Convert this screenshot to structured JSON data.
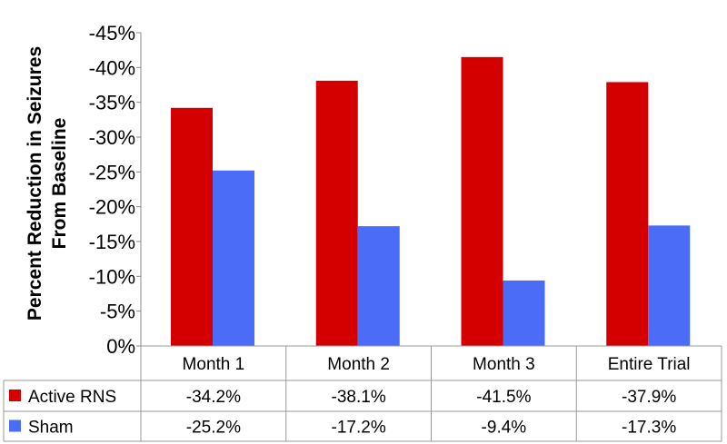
{
  "chart_data": {
    "type": "bar",
    "ylabel": "Percent Reduction in Seizures From Baseline",
    "ylabel_lines": [
      "Percent Reduction in Seizures",
      "From Baseline"
    ],
    "categories": [
      "Month 1",
      "Month 2",
      "Month 3",
      "Entire Trial"
    ],
    "ylim": [
      0,
      -45
    ],
    "yticks": [
      "0%",
      "-5%",
      "-10%",
      "-15%",
      "-20%",
      "-25%",
      "-30%",
      "-35%",
      "-40%",
      "-45%"
    ],
    "grid": false,
    "legend": "data-table",
    "series": [
      {
        "name": "Active RNS",
        "color": "#d40000",
        "values": [
          -34.2,
          -38.1,
          -41.5,
          -37.9
        ],
        "labels": [
          "-34.2%",
          "-38.1%",
          "-41.5%",
          "-37.9%"
        ]
      },
      {
        "name": "Sham",
        "color": "#4a6cf7",
        "values": [
          -25.2,
          -17.2,
          -9.4,
          -17.3
        ],
        "labels": [
          "-25.2%",
          "-17.2%",
          "-9.4%",
          "-17.3%"
        ]
      }
    ]
  }
}
